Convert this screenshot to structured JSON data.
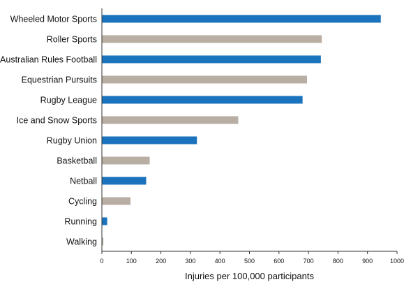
{
  "chart_data": {
    "type": "bar",
    "orientation": "horizontal",
    "title": "",
    "xlabel": "Injuries per 100,000 participants",
    "ylabel": "",
    "xlim": [
      0,
      1000
    ],
    "xticks": [
      0,
      100,
      200,
      300,
      400,
      500,
      600,
      700,
      800,
      900,
      1000
    ],
    "grid": false,
    "legend": "none",
    "categories": [
      "Wheeled Motor Sports",
      "Roller Sports",
      "Australian Rules Football",
      "Equestrian Pursuits",
      "Rugby League",
      "Ice and Snow Sports",
      "Rugby Union",
      "Basketball",
      "Netball",
      "Cycling",
      "Running",
      "Walking"
    ],
    "values": [
      945,
      745,
      742,
      695,
      680,
      462,
      322,
      162,
      150,
      97,
      18,
      5
    ],
    "bar_colors": [
      "#1a73bc",
      "#b8aea3",
      "#1a73bc",
      "#b8aea3",
      "#1a73bc",
      "#b8aea3",
      "#1a73bc",
      "#b8aea3",
      "#1a73bc",
      "#b8aea3",
      "#1a73bc",
      "#b8aea3"
    ]
  }
}
